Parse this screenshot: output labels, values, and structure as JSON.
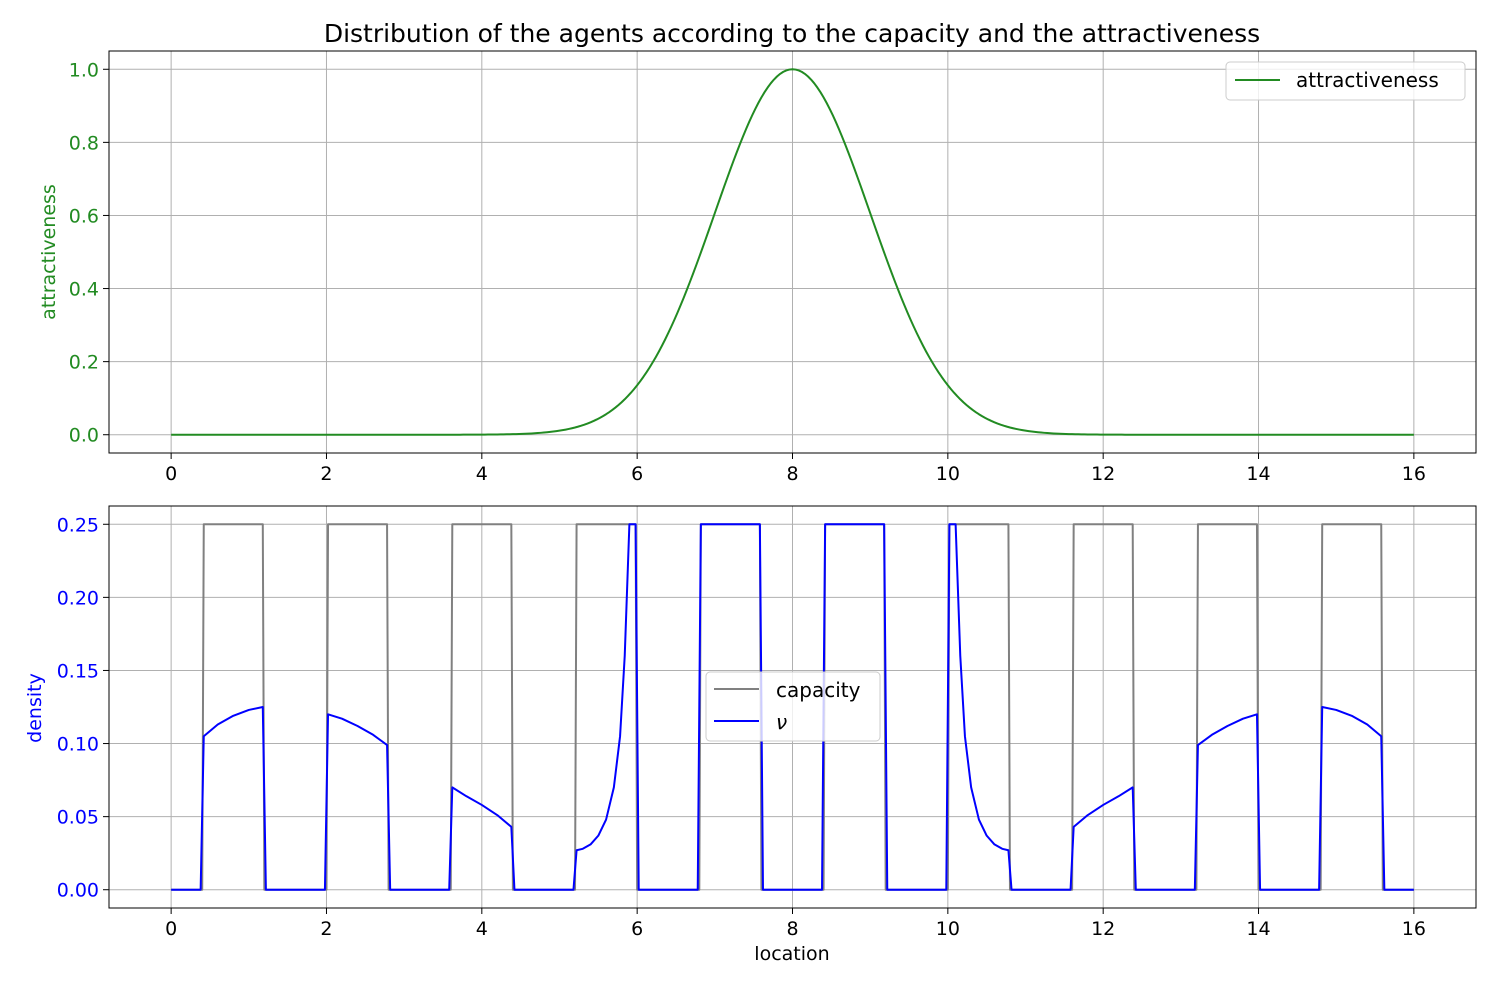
{
  "figure": {
    "title": "Distribution of the agents according to the capacity and the attractiveness"
  },
  "chart_data": [
    {
      "type": "line",
      "ylabel": "attractiveness",
      "xlabel": "",
      "xlim": [
        -0.8,
        16.8
      ],
      "ylim": [
        -0.05,
        1.05
      ],
      "xticks": [
        "0",
        "2",
        "4",
        "6",
        "8",
        "10",
        "12",
        "14",
        "16"
      ],
      "yticks": [
        "0.0",
        "0.2",
        "0.4",
        "0.6",
        "0.8",
        "1.0"
      ],
      "grid": true,
      "legend_position": "top-right",
      "label_color": "#228b22",
      "series": [
        {
          "name": "attractiveness",
          "color": "#228b22",
          "function": "gaussian",
          "amplitude": 1.0,
          "mu": 8,
          "sigma": 1.0,
          "x_range": [
            0,
            16
          ]
        }
      ]
    },
    {
      "type": "line",
      "ylabel": "density",
      "xlabel": "location",
      "xlim": [
        -0.8,
        16.8
      ],
      "ylim": [
        -0.0125,
        0.2625
      ],
      "xticks": [
        "0",
        "2",
        "4",
        "6",
        "8",
        "10",
        "12",
        "14",
        "16"
      ],
      "yticks": [
        "0.00",
        "0.05",
        "0.10",
        "0.15",
        "0.20",
        "0.25"
      ],
      "grid": true,
      "legend_position": "center",
      "label_color": "#0000ff",
      "series": [
        {
          "name": "capacity",
          "color": "#808080",
          "points": [
            [
              0,
              0
            ],
            [
              0.4,
              0
            ],
            [
              0.42,
              0.25
            ],
            [
              1.18,
              0.25
            ],
            [
              1.2,
              0
            ],
            [
              2.0,
              0
            ],
            [
              2.02,
              0.25
            ],
            [
              2.78,
              0.25
            ],
            [
              2.8,
              0
            ],
            [
              3.6,
              0
            ],
            [
              3.62,
              0.25
            ],
            [
              4.38,
              0.25
            ],
            [
              4.4,
              0
            ],
            [
              5.2,
              0
            ],
            [
              5.22,
              0.25
            ],
            [
              5.98,
              0.25
            ],
            [
              6.0,
              0
            ],
            [
              6.8,
              0
            ],
            [
              6.82,
              0.25
            ],
            [
              7.58,
              0.25
            ],
            [
              7.6,
              0
            ],
            [
              8.4,
              0
            ],
            [
              8.42,
              0.25
            ],
            [
              9.18,
              0.25
            ],
            [
              9.2,
              0
            ],
            [
              10.0,
              0
            ],
            [
              10.02,
              0.25
            ],
            [
              10.78,
              0.25
            ],
            [
              10.8,
              0
            ],
            [
              11.6,
              0
            ],
            [
              11.62,
              0.25
            ],
            [
              12.38,
              0.25
            ],
            [
              12.4,
              0
            ],
            [
              13.2,
              0
            ],
            [
              13.22,
              0.25
            ],
            [
              13.98,
              0.25
            ],
            [
              14.0,
              0
            ],
            [
              14.8,
              0
            ],
            [
              14.82,
              0.25
            ],
            [
              15.58,
              0.25
            ],
            [
              15.6,
              0
            ],
            [
              16,
              0
            ]
          ]
        },
        {
          "name": "ν",
          "color": "#0000ff",
          "points": [
            [
              0,
              0
            ],
            [
              0.38,
              0
            ],
            [
              0.42,
              0.105
            ],
            [
              0.6,
              0.113
            ],
            [
              0.8,
              0.119
            ],
            [
              1.0,
              0.123
            ],
            [
              1.18,
              0.125
            ],
            [
              1.22,
              0
            ],
            [
              1.98,
              0
            ],
            [
              2.02,
              0.12
            ],
            [
              2.2,
              0.117
            ],
            [
              2.4,
              0.112
            ],
            [
              2.6,
              0.106
            ],
            [
              2.78,
              0.099
            ],
            [
              2.82,
              0
            ],
            [
              3.58,
              0
            ],
            [
              3.62,
              0.07
            ],
            [
              3.8,
              0.064
            ],
            [
              4.0,
              0.058
            ],
            [
              4.2,
              0.051
            ],
            [
              4.38,
              0.043
            ],
            [
              4.42,
              0
            ],
            [
              5.18,
              0
            ],
            [
              5.22,
              0.027
            ],
            [
              5.3,
              0.028
            ],
            [
              5.4,
              0.031
            ],
            [
              5.5,
              0.037
            ],
            [
              5.6,
              0.048
            ],
            [
              5.7,
              0.07
            ],
            [
              5.78,
              0.105
            ],
            [
              5.84,
              0.16
            ],
            [
              5.88,
              0.22
            ],
            [
              5.9,
              0.25
            ],
            [
              5.98,
              0.25
            ],
            [
              6.02,
              0
            ],
            [
              6.78,
              0
            ],
            [
              6.82,
              0.25
            ],
            [
              7.58,
              0.25
            ],
            [
              7.62,
              0
            ],
            [
              8.38,
              0
            ],
            [
              8.42,
              0.25
            ],
            [
              9.18,
              0.25
            ],
            [
              9.22,
              0
            ],
            [
              9.98,
              0
            ],
            [
              10.02,
              0.25
            ],
            [
              10.1,
              0.25
            ],
            [
              10.12,
              0.22
            ],
            [
              10.16,
              0.16
            ],
            [
              10.22,
              0.105
            ],
            [
              10.3,
              0.07
            ],
            [
              10.4,
              0.048
            ],
            [
              10.5,
              0.037
            ],
            [
              10.6,
              0.031
            ],
            [
              10.7,
              0.028
            ],
            [
              10.78,
              0.027
            ],
            [
              10.82,
              0
            ],
            [
              11.58,
              0
            ],
            [
              11.62,
              0.043
            ],
            [
              11.8,
              0.051
            ],
            [
              12.0,
              0.058
            ],
            [
              12.2,
              0.064
            ],
            [
              12.38,
              0.07
            ],
            [
              12.42,
              0
            ],
            [
              13.18,
              0
            ],
            [
              13.22,
              0.099
            ],
            [
              13.4,
              0.106
            ],
            [
              13.6,
              0.112
            ],
            [
              13.8,
              0.117
            ],
            [
              13.98,
              0.12
            ],
            [
              14.02,
              0
            ],
            [
              14.78,
              0
            ],
            [
              14.82,
              0.125
            ],
            [
              15.0,
              0.123
            ],
            [
              15.2,
              0.119
            ],
            [
              15.4,
              0.113
            ],
            [
              15.58,
              0.105
            ],
            [
              15.62,
              0
            ],
            [
              16,
              0
            ]
          ]
        }
      ]
    }
  ]
}
